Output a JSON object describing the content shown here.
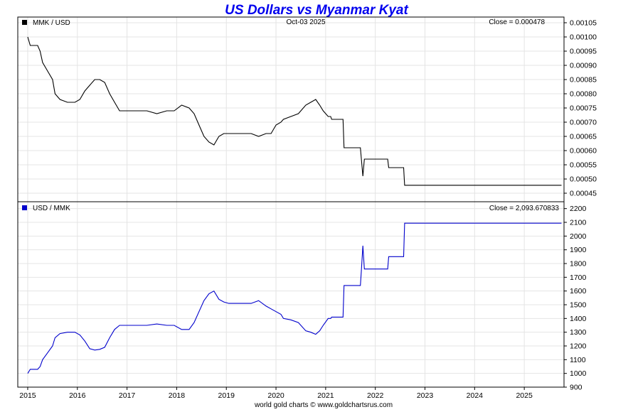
{
  "title": "US Dollars vs Myanmar Kyat",
  "date_label": "Oct-03  2025",
  "footer": "world gold charts © www.goldchartsrus.com",
  "colors": {
    "title": "#0000ee",
    "top_line": "#000000",
    "bottom_line": "#0000cc",
    "grid": "#e4e4e4"
  },
  "chart_data": [
    {
      "type": "line",
      "panel": "top",
      "legend": "MMK / USD",
      "legend_color": "#000000",
      "close_label": "Close = 0.000478",
      "ylim": [
        0.00042,
        0.00107
      ],
      "yticks": [
        "0.00105",
        "0.00100",
        "0.00095",
        "0.00090",
        "0.00085",
        "0.00080",
        "0.00075",
        "0.00070",
        "0.00065",
        "0.00060",
        "0.00055",
        "0.00050",
        "0.00045"
      ],
      "x": [
        2015.0,
        2015.05,
        2015.1,
        2015.2,
        2015.25,
        2015.3,
        2015.4,
        2015.5,
        2015.55,
        2015.65,
        2015.8,
        2015.95,
        2016.05,
        2016.15,
        2016.25,
        2016.35,
        2016.45,
        2016.55,
        2016.65,
        2016.75,
        2016.85,
        2016.95,
        2017.0,
        2017.2,
        2017.4,
        2017.6,
        2017.8,
        2017.95,
        2018.1,
        2018.25,
        2018.35,
        2018.45,
        2018.55,
        2018.65,
        2018.75,
        2018.85,
        2018.95,
        2019.05,
        2019.2,
        2019.35,
        2019.5,
        2019.65,
        2019.8,
        2019.9,
        2020.0,
        2020.1,
        2020.15,
        2020.3,
        2020.45,
        2020.6,
        2020.7,
        2020.8,
        2020.88,
        2020.95,
        2021.05,
        2021.1,
        2021.12,
        2021.3,
        2021.35,
        2021.37,
        2021.7,
        2021.72,
        2021.75,
        2021.78,
        2021.8,
        2021.85,
        2022.25,
        2022.27,
        2022.57,
        2022.59,
        2025.75
      ],
      "y": [
        0.001,
        0.00097,
        0.00097,
        0.00097,
        0.00095,
        0.00091,
        0.00088,
        0.00085,
        0.0008,
        0.00078,
        0.00077,
        0.00077,
        0.00078,
        0.00081,
        0.00083,
        0.00085,
        0.00085,
        0.00084,
        0.0008,
        0.00077,
        0.00074,
        0.00074,
        0.00074,
        0.00074,
        0.00074,
        0.00073,
        0.00074,
        0.00074,
        0.00076,
        0.00075,
        0.00073,
        0.00069,
        0.00065,
        0.00063,
        0.00062,
        0.00065,
        0.00066,
        0.00066,
        0.00066,
        0.00066,
        0.00066,
        0.00065,
        0.00066,
        0.00066,
        0.00069,
        0.0007,
        0.00071,
        0.00072,
        0.00073,
        0.00076,
        0.00077,
        0.00078,
        0.00076,
        0.00074,
        0.00072,
        0.00072,
        0.00071,
        0.00071,
        0.00071,
        0.00061,
        0.00061,
        0.00057,
        0.00051,
        0.00057,
        0.00057,
        0.00057,
        0.00057,
        0.00054,
        0.00054,
        0.000478,
        0.000478
      ]
    },
    {
      "type": "line",
      "panel": "bottom",
      "legend": "USD / MMK",
      "legend_color": "#0000cc",
      "close_label": "Close = 2,093.670833",
      "ylim": [
        900,
        2250
      ],
      "yticks": [
        "2200",
        "2100",
        "2000",
        "1900",
        "1800",
        "1700",
        "1600",
        "1500",
        "1400",
        "1300",
        "1200",
        "1100",
        "1000",
        "900"
      ],
      "x": [
        2015.0,
        2015.05,
        2015.1,
        2015.2,
        2015.25,
        2015.3,
        2015.4,
        2015.5,
        2015.55,
        2015.65,
        2015.8,
        2015.95,
        2016.05,
        2016.15,
        2016.25,
        2016.35,
        2016.45,
        2016.55,
        2016.65,
        2016.75,
        2016.85,
        2016.95,
        2017.0,
        2017.2,
        2017.4,
        2017.6,
        2017.8,
        2017.95,
        2018.1,
        2018.25,
        2018.35,
        2018.45,
        2018.55,
        2018.65,
        2018.75,
        2018.85,
        2018.95,
        2019.05,
        2019.2,
        2019.35,
        2019.5,
        2019.65,
        2019.8,
        2019.9,
        2020.0,
        2020.1,
        2020.15,
        2020.3,
        2020.45,
        2020.6,
        2020.7,
        2020.8,
        2020.88,
        2020.95,
        2021.05,
        2021.1,
        2021.12,
        2021.3,
        2021.35,
        2021.37,
        2021.7,
        2021.72,
        2021.75,
        2021.78,
        2021.8,
        2021.85,
        2022.25,
        2022.27,
        2022.57,
        2022.59,
        2025.75
      ],
      "y": [
        1000,
        1030,
        1030,
        1030,
        1050,
        1100,
        1150,
        1200,
        1260,
        1290,
        1300,
        1300,
        1280,
        1235,
        1180,
        1170,
        1175,
        1190,
        1260,
        1320,
        1350,
        1350,
        1350,
        1350,
        1350,
        1360,
        1350,
        1350,
        1320,
        1320,
        1370,
        1450,
        1530,
        1580,
        1600,
        1540,
        1520,
        1510,
        1510,
        1510,
        1510,
        1530,
        1490,
        1470,
        1450,
        1430,
        1400,
        1390,
        1370,
        1310,
        1300,
        1285,
        1310,
        1350,
        1400,
        1400,
        1410,
        1410,
        1410,
        1640,
        1640,
        1750,
        1930,
        1760,
        1760,
        1760,
        1760,
        1850,
        1850,
        2093.67,
        2093.67
      ]
    }
  ],
  "x_axis": {
    "ticks": [
      "2015",
      "2016",
      "2017",
      "2018",
      "2019",
      "2020",
      "2021",
      "2022",
      "2023",
      "2024",
      "2025"
    ],
    "range": [
      2014.8,
      2025.8
    ]
  }
}
